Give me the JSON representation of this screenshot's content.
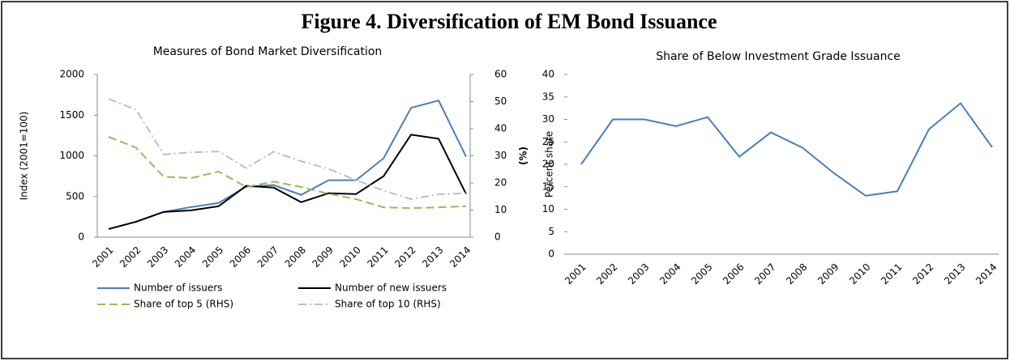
{
  "title": "Figure 4. Diversification of EM Bond Issuance",
  "chart_data": [
    {
      "type": "line",
      "title": "Measures of Bond Market Diversification",
      "y_label": "Index (2001=100)",
      "y2_label": "(%)",
      "categories": [
        "2001",
        "2002",
        "2003",
        "2004",
        "2005",
        "2006",
        "2007",
        "2008",
        "2009",
        "2010",
        "2011",
        "2012",
        "2013",
        "2014"
      ],
      "ylim": [
        0,
        2000
      ],
      "yticks": [
        0,
        500,
        1000,
        1500,
        2000
      ],
      "y2lim": [
        0,
        60
      ],
      "y2ticks": [
        0,
        10,
        20,
        30,
        40,
        50,
        60
      ],
      "legend": "bottom",
      "series": [
        {
          "name": "Number of issuers",
          "color": "#4a7ebb",
          "dash": "solid",
          "values": [
            100,
            190,
            310,
            370,
            420,
            620,
            640,
            520,
            700,
            700,
            970,
            1590,
            1680,
            990
          ]
        },
        {
          "name": "Number of new issuers",
          "color": "#000000",
          "dash": "solid",
          "values": [
            100,
            190,
            310,
            330,
            380,
            630,
            610,
            430,
            540,
            530,
            750,
            1260,
            1210,
            530
          ]
        },
        {
          "name": "Share of top 5 (RHS)",
          "color": "#9bbb59",
          "dash": "dashed",
          "axis": "y2",
          "values": [
            37,
            33,
            22.3,
            21.8,
            24.2,
            18.5,
            20.5,
            18.5,
            16,
            14,
            11,
            10.7,
            11,
            11.4
          ]
        },
        {
          "name": "Share of top 10 (RHS)",
          "color": "#bfbfbf",
          "dash": "dashdot",
          "axis": "y2",
          "values": [
            51,
            47,
            30.5,
            31.3,
            31.6,
            25.5,
            31.5,
            28,
            25.2,
            21,
            17.2,
            14,
            15.8,
            16.2
          ]
        }
      ]
    },
    {
      "type": "line",
      "title": "Share of Below Investment Grade Issuance",
      "y_label": "Percent share",
      "categories": [
        "2001",
        "2002",
        "2003",
        "2004",
        "2005",
        "2006",
        "2007",
        "2008",
        "2009",
        "2010",
        "2011",
        "2012",
        "2013",
        "2014"
      ],
      "ylim": [
        0,
        40
      ],
      "yticks": [
        0,
        5,
        10,
        15,
        20,
        25,
        30,
        35,
        40
      ],
      "color": "#4a7ebb",
      "values": [
        20,
        30,
        30,
        28.5,
        30.5,
        21.7,
        27.1,
        23.7,
        18,
        13,
        14,
        27.8,
        33.6,
        23.8
      ]
    }
  ]
}
